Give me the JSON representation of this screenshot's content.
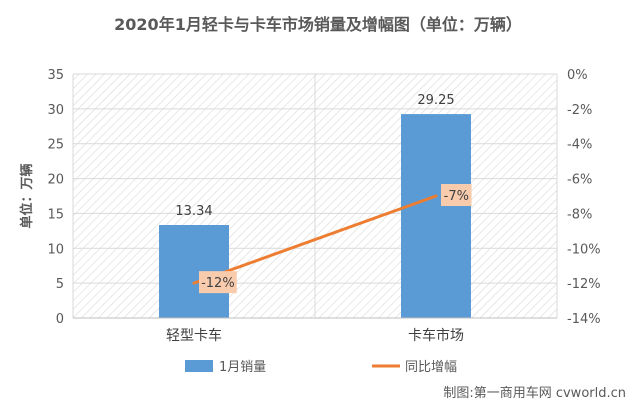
{
  "chart_data": {
    "type": "bar",
    "title": "2020年1月轻卡与卡车市场销量及增幅图（单位：万辆）",
    "ylabel": "单位：万辆",
    "categories": [
      "轻型卡车",
      "卡车市场"
    ],
    "y_ticks": [
      "0",
      "5",
      "10",
      "15",
      "20",
      "25",
      "30",
      "35"
    ],
    "ylim": [
      0,
      35
    ],
    "y2_ticks": [
      "-14%",
      "-12%",
      "-10%",
      "-8%",
      "-6%",
      "-4%",
      "-2%",
      "0%"
    ],
    "y2lim": [
      -14,
      0
    ],
    "grid": true,
    "legend_position": "bottom",
    "series": [
      {
        "name": "1月销量",
        "type": "bar",
        "axis": "left",
        "color": "#5B9BD5",
        "values": [
          13.34,
          29.25
        ],
        "labels": [
          "13.34",
          "29.25"
        ]
      },
      {
        "name": "同比增幅",
        "type": "line",
        "axis": "right",
        "color": "#ED7D31",
        "values": [
          -12,
          -7
        ],
        "labels": [
          "-12%",
          "-7%"
        ]
      }
    ]
  },
  "source": "制图:第一商用车网 cvworld.cn"
}
